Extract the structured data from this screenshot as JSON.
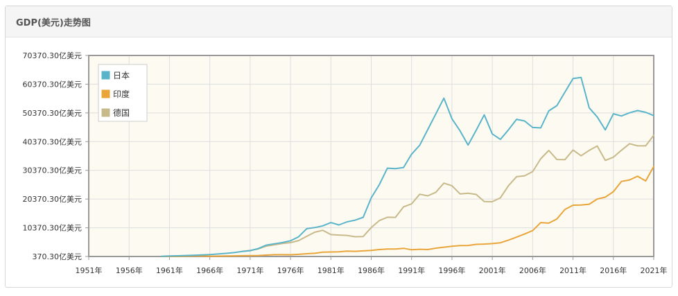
{
  "panel": {
    "title": "GDP(美元)走势图"
  },
  "colors": {
    "japan": "#5ab4c9",
    "india": "#e9a43a",
    "germany": "#c8b98b",
    "plot_bg": "#fdfbf1",
    "grid": "#dddddd",
    "axis": "#999999"
  },
  "chart_data": {
    "type": "line",
    "title": "GDP(美元)走势图",
    "y_ticks": [
      "370.30亿美元",
      "10370.30亿美元",
      "20370.30亿美元",
      "30370.30亿美元",
      "40370.30亿美元",
      "50370.30亿美元",
      "60370.30亿美元",
      "70370.30亿美元"
    ],
    "y_tick_values": [
      370.3,
      10370.3,
      20370.3,
      30370.3,
      40370.3,
      50370.3,
      60370.3,
      70370.3
    ],
    "ylim": [
      370.3,
      70370.3
    ],
    "x_ticks": [
      "1951年",
      "1956年",
      "1961年",
      "1966年",
      "1971年",
      "1976年",
      "1981年",
      "1986年",
      "1991年",
      "1996年",
      "2001年",
      "2006年",
      "2011年",
      "2016年",
      "2021年"
    ],
    "x_tick_values": [
      1951,
      1956,
      1961,
      1966,
      1971,
      1976,
      1981,
      1986,
      1991,
      1996,
      2001,
      2006,
      2011,
      2016,
      2021
    ],
    "xlim": [
      1951,
      2021
    ],
    "grid": true,
    "legend_position": "top-left",
    "series": [
      {
        "name": "日本",
        "x": [
          1960,
          1961,
          1962,
          1963,
          1964,
          1965,
          1966,
          1967,
          1968,
          1969,
          1970,
          1971,
          1972,
          1973,
          1974,
          1975,
          1976,
          1977,
          1978,
          1979,
          1980,
          1981,
          1982,
          1983,
          1984,
          1985,
          1986,
          1987,
          1988,
          1989,
          1990,
          1991,
          1992,
          1993,
          1994,
          1995,
          1996,
          1997,
          1998,
          1999,
          2000,
          2001,
          2002,
          2003,
          2004,
          2005,
          2006,
          2007,
          2008,
          2009,
          2010,
          2011,
          2012,
          2013,
          2014,
          2015,
          2016,
          2017,
          2018,
          2019,
          2020,
          2021
        ],
        "y": [
          443,
          537,
          609,
          697,
          814,
          910,
          1048,
          1232,
          1468,
          1729,
          2127,
          2403,
          3129,
          4320,
          4779,
          5214,
          5847,
          7219,
          10048,
          10429,
          11050,
          12183,
          11344,
          12436,
          13010,
          14016,
          20791,
          25349,
          31110,
          30988,
          31370,
          35988,
          39085,
          44541,
          49989,
          55499,
          48336,
          44143,
          39148,
          44326,
          49683,
          43036,
          41151,
          44460,
          48151,
          47554,
          45303,
          45153,
          51063,
          52891,
          57590,
          62331,
          62724,
          52124,
          48966,
          44448,
          50037,
          49305,
          50408,
          51188,
          50579,
          49409
        ]
      },
      {
        "name": "印度",
        "x": [
          1960,
          1961,
          1962,
          1963,
          1964,
          1965,
          1966,
          1967,
          1968,
          1969,
          1970,
          1971,
          1972,
          1973,
          1974,
          1975,
          1976,
          1977,
          1978,
          1979,
          1980,
          1981,
          1982,
          1983,
          1984,
          1985,
          1986,
          1987,
          1988,
          1989,
          1990,
          1991,
          1992,
          1993,
          1994,
          1995,
          1996,
          1997,
          1998,
          1999,
          2000,
          2001,
          2002,
          2003,
          2004,
          2005,
          2006,
          2007,
          2008,
          2009,
          2010,
          2011,
          2012,
          2013,
          2014,
          2015,
          2016,
          2017,
          2018,
          2019,
          2020,
          2021
        ],
        "y": [
          370,
          392,
          422,
          486,
          566,
          596,
          458,
          500,
          533,
          584,
          626,
          670,
          713,
          851,
          996,
          988,
          981,
          1123,
          1331,
          1483,
          1862,
          1934,
          2005,
          2227,
          2152,
          2328,
          2483,
          2793,
          2969,
          2963,
          3207,
          2705,
          2883,
          2795,
          3273,
          3602,
          3929,
          4153,
          4213,
          4585,
          4684,
          4852,
          5149,
          6073,
          7094,
          8203,
          9402,
          12167,
          11989,
          13419,
          16756,
          18230,
          18276,
          18567,
          20391,
          21036,
          22947,
          26515,
          27028,
          28317,
          26675,
          31734
        ]
      },
      {
        "name": "德国",
        "x": [
          1970,
          1971,
          1972,
          1973,
          1974,
          1975,
          1976,
          1977,
          1978,
          1979,
          1980,
          1981,
          1982,
          1983,
          1984,
          1985,
          1986,
          1987,
          1988,
          1989,
          1990,
          1991,
          1992,
          1993,
          1994,
          1995,
          1996,
          1997,
          1998,
          1999,
          2000,
          2001,
          2002,
          2003,
          2004,
          2005,
          2006,
          2007,
          2008,
          2009,
          2010,
          2011,
          2012,
          2013,
          2014,
          2015,
          2016,
          2017,
          2018,
          2019,
          2020,
          2021
        ],
        "y": [
          2151,
          2495,
          2996,
          3984,
          4452,
          4894,
          5195,
          5906,
          7400,
          8813,
          9501,
          8006,
          7818,
          7708,
          7252,
          7327,
          10443,
          12868,
          14024,
          13989,
          17649,
          18689,
          22036,
          21502,
          22723,
          25918,
          25014,
          22177,
          22401,
          21977,
          19486,
          19445,
          20784,
          25014,
          28147,
          28457,
          29940,
          34398,
          37304,
          34141,
          34102,
          37442,
          35432,
          37326,
          38839,
          33818,
          34952,
          37350,
          39649,
          38893,
          38895,
          42599
        ]
      }
    ]
  }
}
